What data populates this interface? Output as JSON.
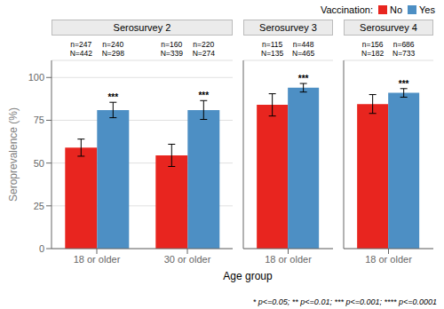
{
  "chart_data": [
    {
      "type": "bar",
      "title": "Serosurvey 2",
      "categories": [
        "18 or older",
        "30 or older"
      ],
      "series": [
        {
          "name": "No",
          "color": "#E8251F",
          "values": [
            59.0,
            54.5
          ],
          "error_low": [
            5.0,
            6.5
          ],
          "error_high": [
            5.0,
            6.5
          ],
          "n_labels": [
            "n=247\nN=442",
            "n=160\nN=339"
          ]
        },
        {
          "name": "Yes",
          "color": "#4D8FC4",
          "values": [
            81.0,
            81.0
          ],
          "error_low": [
            4.5,
            5.5
          ],
          "error_high": [
            4.5,
            5.5
          ],
          "n_labels": [
            "n=240\nN=298",
            "n=220\nN=274"
          ]
        }
      ],
      "significance": [
        "***",
        "***"
      ],
      "ylim": [
        0,
        110
      ],
      "yticks": [
        0,
        25,
        50,
        75,
        100
      ],
      "grid": true,
      "ylabel": "Seroprevalence (%)",
      "xlabel": "Age group",
      "legend": "top right",
      "legend_title": "Vaccination:",
      "footnote": "* p<=0.05; ** p<=0.01; *** p<=0.001; **** p<=0.0001"
    },
    {
      "type": "bar",
      "title": "Serosurvey 3",
      "categories": [
        "18 or older"
      ],
      "series": [
        {
          "name": "No",
          "color": "#E8251F",
          "values": [
            84.0
          ],
          "error_low": [
            6.5
          ],
          "error_high": [
            6.5
          ],
          "n_labels": [
            "n=115\nN=135"
          ]
        },
        {
          "name": "Yes",
          "color": "#4D8FC4",
          "values": [
            94.0
          ],
          "error_low": [
            2.5
          ],
          "error_high": [
            2.5
          ],
          "n_labels": [
            "n=448\nN=465"
          ]
        }
      ],
      "significance": [
        "***"
      ],
      "ylim": [
        0,
        110
      ],
      "yticks": [
        0,
        25,
        50,
        75,
        100
      ],
      "grid": true,
      "tick_labels": "x"
    },
    {
      "type": "bar",
      "title": "Serosurvey 4",
      "categories": [
        "18 or older"
      ],
      "series": [
        {
          "name": "No",
          "color": "#E8251F",
          "values": [
            84.5
          ],
          "error_low": [
            5.5
          ],
          "error_high": [
            5.5
          ],
          "n_labels": [
            "n=156\nN=182"
          ]
        },
        {
          "name": "Yes",
          "color": "#4D8FC4",
          "values": [
            91.0
          ],
          "error_low": [
            2.5
          ],
          "error_high": [
            2.5
          ],
          "n_labels": [
            "n=686\nN=733"
          ]
        }
      ],
      "significance": [
        "***"
      ],
      "ylim": [
        0,
        110
      ],
      "yticks": [
        0,
        25,
        50,
        75,
        100
      ],
      "grid": true,
      "tick_labels": "x"
    }
  ]
}
